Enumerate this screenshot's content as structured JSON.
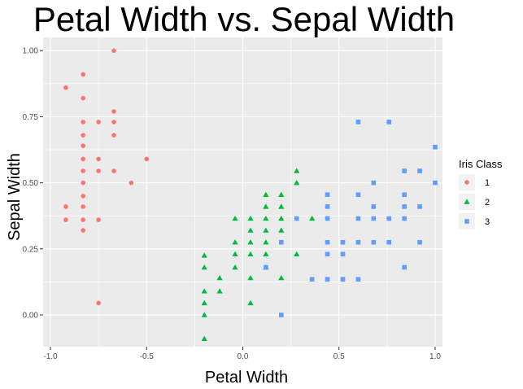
{
  "chart_data": {
    "type": "scatter",
    "title": "Petal Width  vs.  Sepal Width",
    "xlabel": "Petal Width",
    "ylabel": "Sepal Width",
    "xlim": [
      -1.0,
      1.0
    ],
    "ylim": [
      -0.12,
      1.05
    ],
    "x_ticks": [
      -1.0,
      -0.5,
      0.0,
      0.5,
      1.0
    ],
    "x_tick_labels": [
      "-1.0",
      "-0.5",
      "0.0",
      "0.5",
      "1.0"
    ],
    "y_ticks": [
      0.0,
      0.25,
      0.5,
      0.75,
      1.0
    ],
    "y_tick_labels": [
      "0.00",
      "0.25",
      "0.50",
      "0.75",
      "1.00"
    ],
    "grid": true,
    "legend": {
      "title": "Iris Class",
      "position": "right"
    },
    "series": [
      {
        "name": "1",
        "color": "#F8766D",
        "shape": "circle",
        "points": [
          [
            -0.67,
            1.0
          ],
          [
            -0.83,
            0.91
          ],
          [
            -0.92,
            0.86
          ],
          [
            -0.83,
            0.82
          ],
          [
            -0.67,
            0.77
          ],
          [
            -0.83,
            0.73
          ],
          [
            -0.75,
            0.73
          ],
          [
            -0.67,
            0.73
          ],
          [
            -0.83,
            0.68
          ],
          [
            -0.67,
            0.68
          ],
          [
            -0.83,
            0.64
          ],
          [
            -0.83,
            0.59
          ],
          [
            -0.75,
            0.59
          ],
          [
            -0.5,
            0.59
          ],
          [
            -0.83,
            0.545
          ],
          [
            -0.75,
            0.545
          ],
          [
            -0.67,
            0.545
          ],
          [
            -0.83,
            0.5
          ],
          [
            -0.58,
            0.5
          ],
          [
            -0.83,
            0.45
          ],
          [
            -0.92,
            0.41
          ],
          [
            -0.83,
            0.41
          ],
          [
            -0.92,
            0.36
          ],
          [
            -0.83,
            0.36
          ],
          [
            -0.75,
            0.36
          ],
          [
            -0.83,
            0.32
          ],
          [
            -0.75,
            0.045
          ]
        ]
      },
      {
        "name": "2",
        "color": "#00BA38",
        "shape": "triangle",
        "points": [
          [
            0.28,
            0.545
          ],
          [
            0.28,
            0.5
          ],
          [
            0.12,
            0.455
          ],
          [
            0.2,
            0.455
          ],
          [
            0.12,
            0.41
          ],
          [
            0.2,
            0.41
          ],
          [
            -0.04,
            0.365
          ],
          [
            0.04,
            0.365
          ],
          [
            0.12,
            0.365
          ],
          [
            0.2,
            0.365
          ],
          [
            0.36,
            0.365
          ],
          [
            0.04,
            0.32
          ],
          [
            0.12,
            0.32
          ],
          [
            0.2,
            0.32
          ],
          [
            -0.04,
            0.275
          ],
          [
            0.04,
            0.275
          ],
          [
            0.12,
            0.275
          ],
          [
            -0.04,
            0.23
          ],
          [
            0.04,
            0.23
          ],
          [
            0.12,
            0.23
          ],
          [
            0.28,
            0.23
          ],
          [
            -0.2,
            0.225
          ],
          [
            -0.2,
            0.18
          ],
          [
            -0.04,
            0.18
          ],
          [
            0.12,
            0.18
          ],
          [
            -0.12,
            0.14
          ],
          [
            0.04,
            0.14
          ],
          [
            0.2,
            0.14
          ],
          [
            -0.2,
            0.09
          ],
          [
            -0.12,
            0.09
          ],
          [
            -0.2,
            0.045
          ],
          [
            0.04,
            0.045
          ],
          [
            -0.2,
            0.0
          ],
          [
            -0.2,
            -0.09
          ]
        ]
      },
      {
        "name": "3",
        "color": "#619CFF",
        "shape": "square",
        "points": [
          [
            0.6,
            0.73
          ],
          [
            0.76,
            0.73
          ],
          [
            1.0,
            0.635
          ],
          [
            0.84,
            0.545
          ],
          [
            0.92,
            0.545
          ],
          [
            0.68,
            0.5
          ],
          [
            1.0,
            0.5
          ],
          [
            0.44,
            0.455
          ],
          [
            0.6,
            0.455
          ],
          [
            0.84,
            0.455
          ],
          [
            0.44,
            0.41
          ],
          [
            0.68,
            0.41
          ],
          [
            0.84,
            0.41
          ],
          [
            0.92,
            0.41
          ],
          [
            0.28,
            0.365
          ],
          [
            0.44,
            0.365
          ],
          [
            0.6,
            0.365
          ],
          [
            0.68,
            0.365
          ],
          [
            0.76,
            0.365
          ],
          [
            0.84,
            0.365
          ],
          [
            0.2,
            0.275
          ],
          [
            0.44,
            0.275
          ],
          [
            0.52,
            0.275
          ],
          [
            0.6,
            0.275
          ],
          [
            0.68,
            0.275
          ],
          [
            0.76,
            0.275
          ],
          [
            0.92,
            0.275
          ],
          [
            0.44,
            0.23
          ],
          [
            0.52,
            0.23
          ],
          [
            0.12,
            0.18
          ],
          [
            0.84,
            0.18
          ],
          [
            0.36,
            0.135
          ],
          [
            0.44,
            0.135
          ],
          [
            0.52,
            0.135
          ],
          [
            0.6,
            0.135
          ],
          [
            0.2,
            0.0
          ]
        ]
      }
    ]
  }
}
